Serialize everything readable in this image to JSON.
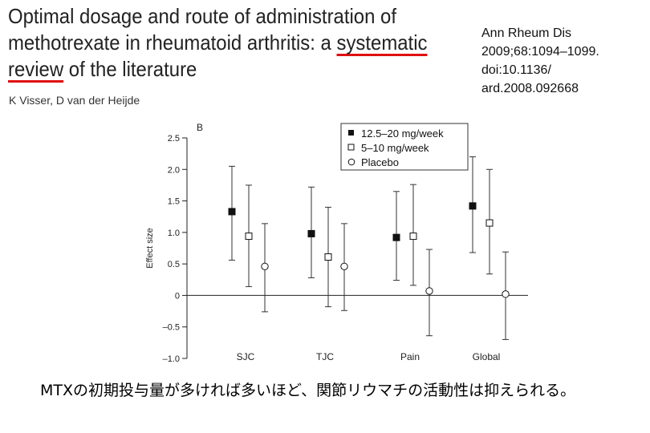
{
  "paper": {
    "title_part1": "Optimal dosage and route of administration of methotrexate in rheumatoid arthritis: a ",
    "title_underlined_1": "systematic",
    "title_underlined_2": "review",
    "title_part2": " of the literature",
    "authors": "K Visser, D van der Heijde",
    "citation": "Ann Rheum Dis\n2009;68:1094–1099.\n doi:10.1136/\nard.2008.092668"
  },
  "caption": "MTXの初期投与量が多ければ多いほど、関節リウマチの活動性は抑えられる。",
  "chart_data": {
    "type": "scatter",
    "panel_label": "B",
    "ylabel": "Effect size",
    "xlabel": "",
    "categories": [
      "SJC",
      "TJC",
      "Pain",
      "Global"
    ],
    "ylim": [
      -1.0,
      2.5
    ],
    "yticks": [
      "2.5",
      "2.0",
      "1.5",
      "1.0",
      "0.5",
      "0",
      "–0.5",
      "–1.0"
    ],
    "ytick_values": [
      2.5,
      2.0,
      1.5,
      1.0,
      0.5,
      0,
      -0.5,
      -1.0
    ],
    "grid": false,
    "legend_position": "top-right",
    "series": [
      {
        "name": "12.5–20 mg/week",
        "marker": "filled-square",
        "color": "#111111",
        "values": [
          1.33,
          0.98,
          0.92,
          1.42
        ],
        "ci_low": [
          0.56,
          0.28,
          0.24,
          0.68
        ],
        "ci_high": [
          2.05,
          1.72,
          1.65,
          2.2
        ]
      },
      {
        "name": "5–10 mg/week",
        "marker": "open-square",
        "color": "#111111",
        "values": [
          0.94,
          0.61,
          0.94,
          1.15
        ],
        "ci_low": [
          0.14,
          -0.18,
          0.16,
          0.34
        ],
        "ci_high": [
          1.75,
          1.4,
          1.76,
          2.0
        ]
      },
      {
        "name": "Placebo",
        "marker": "open-circle",
        "color": "#111111",
        "values": [
          0.46,
          0.46,
          0.07,
          0.02
        ],
        "ci_low": [
          -0.26,
          -0.24,
          -0.64,
          -0.7
        ],
        "ci_high": [
          1.14,
          1.14,
          0.73,
          0.69
        ]
      }
    ]
  }
}
